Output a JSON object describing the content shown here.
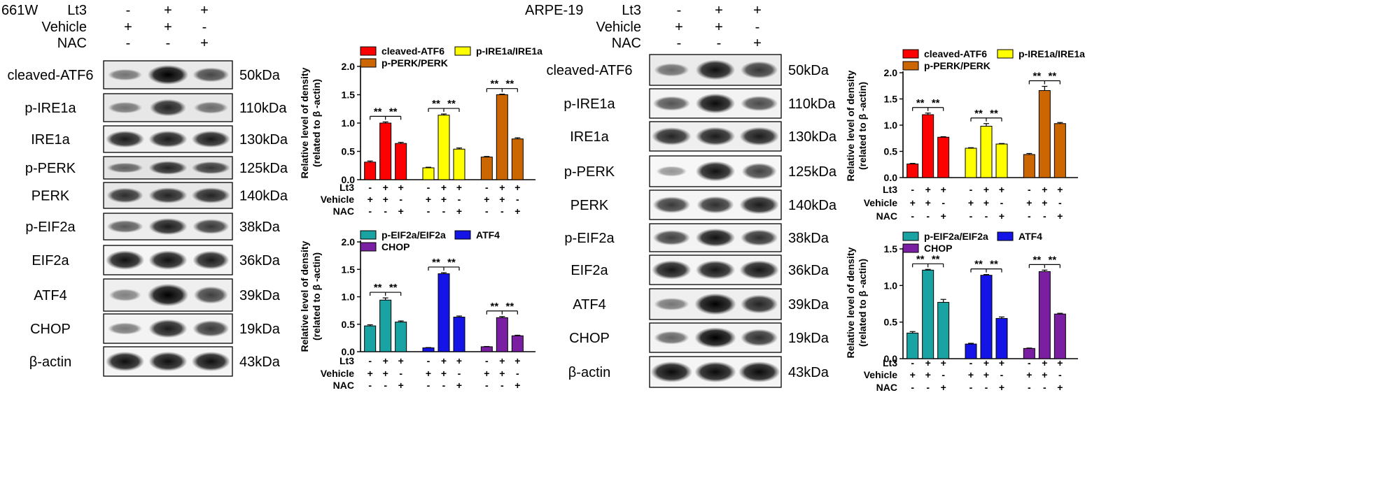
{
  "blot_treatment": {
    "rows": [
      "Lt3",
      "Vehicle",
      "NAC"
    ],
    "signs": [
      [
        "-",
        "+",
        "+"
      ],
      [
        "+",
        "+",
        "-"
      ],
      [
        "-",
        "-",
        "+"
      ]
    ]
  },
  "panels": [
    {
      "cell_line": "661W",
      "blots": [
        {
          "protein": "cleaved-ATF6",
          "mw": "50kDa",
          "bands": [
            0.35,
            1.0,
            0.6
          ],
          "width": [
            0.8,
            0.95,
            0.85
          ],
          "bg": 0.28
        },
        {
          "protein": "p-IRE1a",
          "mw": "110kDa",
          "bands": [
            0.35,
            0.8,
            0.4
          ],
          "width": [
            0.8,
            0.85,
            0.8
          ],
          "bg": 0.3
        },
        {
          "protein": "IRE1a",
          "mw": "130kDa",
          "bands": [
            0.85,
            0.85,
            0.85
          ],
          "width": [
            0.9,
            0.9,
            0.9
          ],
          "bg": 0.2
        },
        {
          "protein": "p-PERK",
          "mw": "125kDa",
          "bands": [
            0.45,
            0.8,
            0.7
          ],
          "width": [
            0.85,
            0.9,
            0.9
          ],
          "bg": 0.35
        },
        {
          "protein": "PERK",
          "mw": "140kDa",
          "bands": [
            0.75,
            0.8,
            0.8
          ],
          "width": [
            0.85,
            0.9,
            0.9
          ],
          "bg": 0.3
        },
        {
          "protein": "p-EIF2a",
          "mw": "38kDa",
          "bands": [
            0.5,
            0.85,
            0.7
          ],
          "width": [
            0.85,
            0.9,
            0.85
          ],
          "bg": 0.22
        },
        {
          "protein": "EIF2a",
          "mw": "36kDa",
          "bands": [
            0.9,
            0.9,
            0.85
          ],
          "width": [
            0.9,
            0.9,
            0.85
          ],
          "bg": 0.12
        },
        {
          "protein": "ATF4",
          "mw": "39kDa",
          "bands": [
            0.3,
            1.0,
            0.65
          ],
          "width": [
            0.75,
            0.95,
            0.8
          ],
          "bg": 0.2
        },
        {
          "protein": "CHOP",
          "mw": "19kDa",
          "bands": [
            0.35,
            0.85,
            0.7
          ],
          "width": [
            0.8,
            0.9,
            0.85
          ],
          "bg": 0.15
        },
        {
          "protein": "β-actin",
          "mw": "43kDa",
          "bands": [
            0.92,
            0.92,
            0.92
          ],
          "width": [
            0.9,
            0.9,
            0.9
          ],
          "bg": 0.12
        }
      ]
    },
    {
      "cell_line": "ARPE-19",
      "blots": [
        {
          "protein": "cleaved-ATF6",
          "mw": "50kDa",
          "bands": [
            0.4,
            0.9,
            0.7
          ],
          "width": [
            0.8,
            0.9,
            0.85
          ],
          "bg": 0.25
        },
        {
          "protein": "p-IRE1a",
          "mw": "110kDa",
          "bands": [
            0.55,
            0.95,
            0.6
          ],
          "width": [
            0.85,
            0.9,
            0.85
          ],
          "bg": 0.15
        },
        {
          "protein": "IRE1a",
          "mw": "130kDa",
          "bands": [
            0.8,
            0.85,
            0.85
          ],
          "width": [
            0.9,
            0.9,
            0.9
          ],
          "bg": 0.2
        },
        {
          "protein": "p-PERK",
          "mw": "125kDa",
          "bands": [
            0.2,
            0.9,
            0.65
          ],
          "width": [
            0.7,
            0.9,
            0.8
          ],
          "bg": 0.1
        },
        {
          "protein": "PERK",
          "mw": "140kDa",
          "bands": [
            0.7,
            0.75,
            0.85
          ],
          "width": [
            0.85,
            0.85,
            0.9
          ],
          "bg": 0.12
        },
        {
          "protein": "p-EIF2a",
          "mw": "38kDa",
          "bands": [
            0.65,
            0.9,
            0.75
          ],
          "width": [
            0.85,
            0.9,
            0.85
          ],
          "bg": 0.15
        },
        {
          "protein": "EIF2a",
          "mw": "36kDa",
          "bands": [
            0.88,
            0.88,
            0.88
          ],
          "width": [
            0.9,
            0.9,
            0.9
          ],
          "bg": 0.12
        },
        {
          "protein": "ATF4",
          "mw": "39kDa",
          "bands": [
            0.35,
            1.0,
            0.8
          ],
          "width": [
            0.8,
            0.95,
            0.85
          ],
          "bg": 0.2
        },
        {
          "protein": "CHOP",
          "mw": "19kDa",
          "bands": [
            0.45,
            1.0,
            0.75
          ],
          "width": [
            0.8,
            0.95,
            0.85
          ],
          "bg": 0.15
        },
        {
          "protein": "β-actin",
          "mw": "43kDa",
          "bands": [
            0.95,
            0.95,
            0.95
          ],
          "width": [
            0.95,
            0.95,
            0.95
          ],
          "bg": 0.12
        }
      ]
    }
  ],
  "chart_data": [
    {
      "type": "bar",
      "panel": "661W",
      "ylabel": "Relative level of density\n(related to β -actin)",
      "ylim": [
        0,
        2.0
      ],
      "yticks": [
        0.0,
        0.5,
        1.0,
        1.5,
        2.0
      ],
      "x_rows": [
        "Lt3",
        "Vehicle",
        "NAC"
      ],
      "x_signs": [
        [
          "-",
          "+",
          "+"
        ],
        [
          "+",
          "+",
          "-"
        ],
        [
          "-",
          "-",
          "+"
        ]
      ],
      "legend": "top",
      "series": [
        {
          "name": "cleaved-ATF6",
          "color": "#ff0000",
          "values": [
            0.31,
            1.0,
            0.64
          ],
          "errors": [
            0.02,
            0.02,
            0.02
          ]
        },
        {
          "name": "p-IRE1a/IRE1a",
          "color": "#ffff00",
          "values": [
            0.21,
            1.14,
            0.54
          ],
          "errors": [
            0.01,
            0.02,
            0.02
          ]
        },
        {
          "name": "p-PERK/PERK",
          "color": "#cc6600",
          "values": [
            0.4,
            1.5,
            0.72
          ],
          "errors": [
            0.01,
            0.01,
            0.02
          ]
        }
      ],
      "significance": [
        "**",
        "**"
      ]
    },
    {
      "type": "bar",
      "panel": "661W",
      "ylabel": "Relative level of density\n(related to β -actin)",
      "ylim": [
        0,
        2.0
      ],
      "yticks": [
        0.0,
        0.5,
        1.0,
        1.5,
        2.0
      ],
      "x_rows": [
        "Lt3",
        "Vehicle",
        "NAC"
      ],
      "x_signs": [
        [
          "-",
          "+",
          "+"
        ],
        [
          "+",
          "+",
          "-"
        ],
        [
          "-",
          "-",
          "+"
        ]
      ],
      "legend": "top",
      "series": [
        {
          "name": "p-EIF2a/EIF2a",
          "color": "#1aa3a3",
          "values": [
            0.47,
            0.94,
            0.54
          ],
          "errors": [
            0.02,
            0.04,
            0.02
          ]
        },
        {
          "name": "ATF4",
          "color": "#1414e6",
          "values": [
            0.07,
            1.42,
            0.63
          ],
          "errors": [
            0.005,
            0.02,
            0.02
          ]
        },
        {
          "name": "CHOP",
          "color": "#7a1fa2",
          "values": [
            0.09,
            0.62,
            0.29
          ],
          "errors": [
            0.005,
            0.02,
            0.01
          ]
        }
      ],
      "significance": [
        "**",
        "**"
      ]
    },
    {
      "type": "bar",
      "panel": "ARPE-19",
      "ylabel": "Relative level of density\n(related to β -actin)",
      "ylim": [
        0,
        2.0
      ],
      "yticks": [
        0.0,
        0.5,
        1.0,
        1.5,
        2.0
      ],
      "x_rows": [
        "Lt3",
        "Vehicle",
        "NAC"
      ],
      "x_signs": [
        [
          "-",
          "+",
          "+"
        ],
        [
          "+",
          "+",
          "-"
        ],
        [
          "-",
          "-",
          "+"
        ]
      ],
      "legend": "top",
      "series": [
        {
          "name": "cleaved-ATF6",
          "color": "#ff0000",
          "values": [
            0.26,
            1.2,
            0.77
          ],
          "errors": [
            0.01,
            0.03,
            0.01
          ]
        },
        {
          "name": "p-IRE1a/IRE1a",
          "color": "#ffff00",
          "values": [
            0.56,
            0.98,
            0.64
          ],
          "errors": [
            0.01,
            0.05,
            0.01
          ]
        },
        {
          "name": "p-PERK/PERK",
          "color": "#cc6600",
          "values": [
            0.44,
            1.66,
            1.03
          ],
          "errors": [
            0.02,
            0.08,
            0.02
          ]
        }
      ],
      "significance": [
        "**",
        "**"
      ]
    },
    {
      "type": "bar",
      "panel": "ARPE-19",
      "ylabel": "Relative level of density\n(related to β -actin)",
      "ylim": [
        0,
        1.5
      ],
      "yticks": [
        0.0,
        0.5,
        1.0,
        1.5
      ],
      "x_rows": [
        "Lt3",
        "Vehicle",
        "NAC"
      ],
      "x_signs": [
        [
          "-",
          "+",
          "+"
        ],
        [
          "+",
          "+",
          "-"
        ],
        [
          "-",
          "-",
          "+"
        ]
      ],
      "legend": "top",
      "series": [
        {
          "name": "p-EIF2a/EIF2a",
          "color": "#1aa3a3",
          "values": [
            0.35,
            1.21,
            0.77
          ],
          "errors": [
            0.02,
            0.01,
            0.04
          ]
        },
        {
          "name": "ATF4",
          "color": "#1414e6",
          "values": [
            0.2,
            1.14,
            0.55
          ],
          "errors": [
            0.01,
            0.01,
            0.02
          ]
        },
        {
          "name": "CHOP",
          "color": "#7a1fa2",
          "values": [
            0.14,
            1.19,
            0.61
          ],
          "errors": [
            0.005,
            0.02,
            0.01
          ]
        }
      ],
      "significance": [
        "**",
        "**"
      ]
    }
  ]
}
